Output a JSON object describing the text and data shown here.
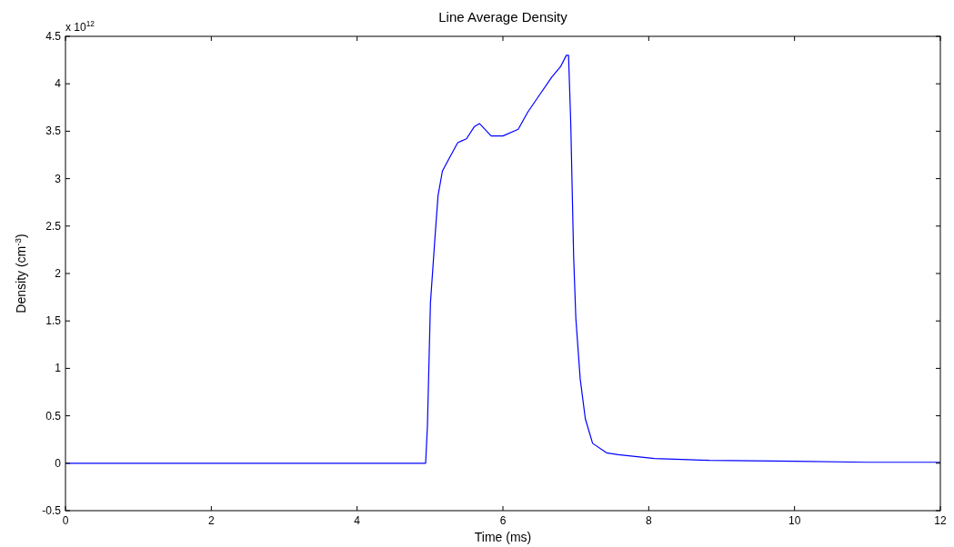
{
  "chart_data": {
    "type": "line",
    "title": "Line Average Density",
    "xlabel": "Time (ms)",
    "ylabel": "Density (cm$^{-3}$)",
    "annotations": [
      "x 10$^{12}$"
    ],
    "xlim": [
      0,
      12
    ],
    "xticks": [
      0,
      2,
      4,
      6,
      8,
      10,
      12
    ],
    "ylim": [
      -0.5,
      4.5
    ],
    "yticks": [
      -0.5,
      0,
      0.5,
      1,
      1.5,
      2,
      2.5,
      3,
      3.5,
      4,
      4.5
    ],
    "grid": false,
    "marker": "none",
    "line_style": "solid",
    "series": [
      {
        "color": "#0000ff",
        "x": [
          0,
          1,
          2,
          3,
          4,
          4.94,
          4.965,
          5.006,
          5.07,
          5.11,
          5.17,
          5.26,
          5.38,
          5.5,
          5.61,
          5.68,
          5.84,
          6.0,
          6.21,
          6.34,
          6.5,
          6.67,
          6.79,
          6.87,
          6.9,
          6.93,
          6.97,
          7.0,
          7.06,
          7.13,
          7.23,
          7.42,
          7.58,
          8.08,
          8.83,
          10,
          11,
          12
        ],
        "values": [
          0,
          0,
          0,
          0,
          0,
          0,
          0.4,
          1.69,
          2.4,
          2.82,
          3.08,
          3.21,
          3.38,
          3.42,
          3.55,
          3.58,
          3.45,
          3.45,
          3.52,
          3.7,
          3.88,
          4.07,
          4.18,
          4.3,
          4.3,
          3.6,
          2.18,
          1.53,
          0.89,
          0.47,
          0.21,
          0.11,
          0.09,
          0.05,
          0.03,
          0.02,
          0.01,
          0.01
        ]
      }
    ]
  }
}
